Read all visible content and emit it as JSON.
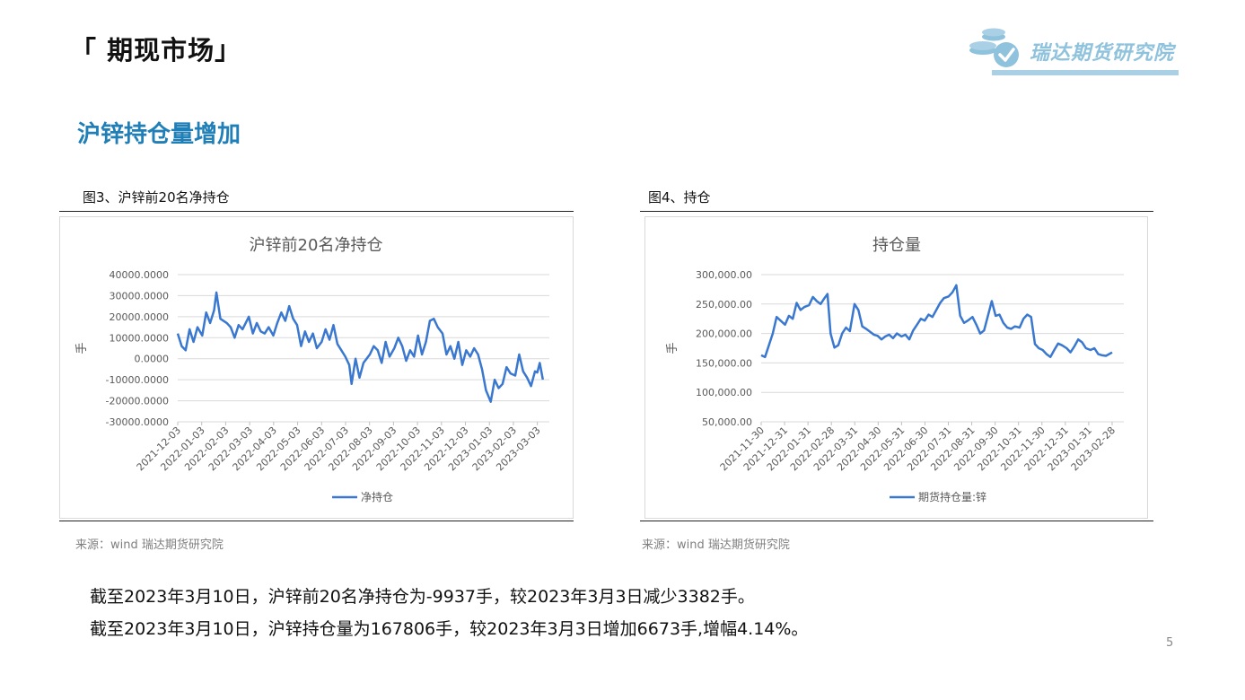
{
  "header": {
    "title": "「 期现市场」"
  },
  "logo": {
    "text": "瑞达期货研究院",
    "color": "#8fc2dc"
  },
  "section": {
    "heading": "沪锌持仓量增加",
    "color": "#1f7fb6"
  },
  "left_panel": {
    "caption": "图3、沪锌前20名净持仓",
    "source": "来源：wind   瑞达期货研究院"
  },
  "right_panel": {
    "caption": "图4、持仓",
    "source": "来源：wind   瑞达期货研究院"
  },
  "body": {
    "line1": "截至2023年3月10日，沪锌前20名净持仓为-9937手，较2023年3月3日减少3382手。",
    "line2": "截至2023年3月10日，沪锌持仓量为167806手，较2023年3月3日增加6673手,增幅4.14%。"
  },
  "page_number": "5",
  "chart_data": [
    {
      "type": "line",
      "title": "沪锌前20名净持仓",
      "ylabel": "手",
      "xlabel": "",
      "legend_position": "bottom",
      "grid": true,
      "color": "#3a78d0",
      "ylim": [
        -30000,
        40000
      ],
      "y_ticks": [
        "40000.0000",
        "30000.0000",
        "20000.0000",
        "10000.0000",
        "0.0000",
        "-10000.0000",
        "-20000.0000",
        "-30000.0000"
      ],
      "x_ticks": [
        "2021-12-03",
        "2022-01-03",
        "2022-02-03",
        "2022-03-03",
        "2022-04-03",
        "2022-05-03",
        "2022-06-03",
        "2022-07-03",
        "2022-08-03",
        "2022-09-03",
        "2022-10-03",
        "2022-11-03",
        "2022-12-03",
        "2023-01-03",
        "2023-02-03",
        "2023-03-03"
      ],
      "series": [
        {
          "name": "净持仓",
          "points": [
            [
              "2021-12-03",
              12000
            ],
            [
              "2021-12-08",
              6000
            ],
            [
              "2021-12-13",
              4000
            ],
            [
              "2021-12-18",
              14000
            ],
            [
              "2021-12-23",
              8000
            ],
            [
              "2021-12-28",
              15000
            ],
            [
              "2022-01-03",
              11000
            ],
            [
              "2022-01-08",
              22000
            ],
            [
              "2022-01-13",
              17000
            ],
            [
              "2022-01-18",
              23000
            ],
            [
              "2022-01-21",
              31500
            ],
            [
              "2022-01-26",
              19000
            ],
            [
              "2022-02-03",
              17000
            ],
            [
              "2022-02-08",
              15000
            ],
            [
              "2022-02-13",
              10000
            ],
            [
              "2022-02-18",
              16000
            ],
            [
              "2022-02-23",
              14000
            ],
            [
              "2022-03-03",
              20000
            ],
            [
              "2022-03-08",
              12000
            ],
            [
              "2022-03-13",
              17000
            ],
            [
              "2022-03-18",
              13000
            ],
            [
              "2022-03-23",
              12000
            ],
            [
              "2022-03-28",
              15000
            ],
            [
              "2022-04-03",
              11000
            ],
            [
              "2022-04-08",
              17000
            ],
            [
              "2022-04-13",
              22000
            ],
            [
              "2022-04-18",
              18000
            ],
            [
              "2022-04-23",
              25000
            ],
            [
              "2022-04-28",
              19000
            ],
            [
              "2022-05-03",
              16000
            ],
            [
              "2022-05-08",
              6000
            ],
            [
              "2022-05-13",
              13000
            ],
            [
              "2022-05-18",
              8000
            ],
            [
              "2022-05-23",
              12000
            ],
            [
              "2022-05-28",
              5000
            ],
            [
              "2022-06-03",
              8000
            ],
            [
              "2022-06-08",
              14000
            ],
            [
              "2022-06-13",
              9000
            ],
            [
              "2022-06-18",
              16000
            ],
            [
              "2022-06-23",
              7000
            ],
            [
              "2022-06-28",
              4000
            ],
            [
              "2022-07-03",
              1000
            ],
            [
              "2022-07-08",
              -3000
            ],
            [
              "2022-07-11",
              -12000
            ],
            [
              "2022-07-16",
              0
            ],
            [
              "2022-07-21",
              -9000
            ],
            [
              "2022-07-26",
              -2000
            ],
            [
              "2022-08-03",
              2000
            ],
            [
              "2022-08-08",
              6000
            ],
            [
              "2022-08-13",
              4000
            ],
            [
              "2022-08-18",
              -2000
            ],
            [
              "2022-08-23",
              8000
            ],
            [
              "2022-08-28",
              1000
            ],
            [
              "2022-09-03",
              5000
            ],
            [
              "2022-09-08",
              10000
            ],
            [
              "2022-09-13",
              6000
            ],
            [
              "2022-09-18",
              -1000
            ],
            [
              "2022-09-23",
              4000
            ],
            [
              "2022-09-28",
              1000
            ],
            [
              "2022-10-03",
              11000
            ],
            [
              "2022-10-08",
              2000
            ],
            [
              "2022-10-13",
              8000
            ],
            [
              "2022-10-18",
              18000
            ],
            [
              "2022-10-23",
              19000
            ],
            [
              "2022-10-28",
              15000
            ],
            [
              "2022-11-03",
              12000
            ],
            [
              "2022-11-08",
              2000
            ],
            [
              "2022-11-13",
              6000
            ],
            [
              "2022-11-18",
              0
            ],
            [
              "2022-11-23",
              8000
            ],
            [
              "2022-11-28",
              -3000
            ],
            [
              "2022-12-03",
              4000
            ],
            [
              "2022-12-08",
              1000
            ],
            [
              "2022-12-13",
              5000
            ],
            [
              "2022-12-18",
              2000
            ],
            [
              "2022-12-23",
              -5000
            ],
            [
              "2022-12-28",
              -15000
            ],
            [
              "2023-01-03",
              -20500
            ],
            [
              "2023-01-08",
              -10000
            ],
            [
              "2023-01-13",
              -14000
            ],
            [
              "2023-01-18",
              -12000
            ],
            [
              "2023-01-23",
              -4000
            ],
            [
              "2023-01-28",
              -7000
            ],
            [
              "2023-02-03",
              -8000
            ],
            [
              "2023-02-08",
              2000
            ],
            [
              "2023-02-13",
              -6000
            ],
            [
              "2023-02-18",
              -9000
            ],
            [
              "2023-02-23",
              -13000
            ],
            [
              "2023-02-28",
              -6000
            ],
            [
              "2023-03-03",
              -6555
            ],
            [
              "2023-03-06",
              -2000
            ],
            [
              "2023-03-10",
              -9937
            ]
          ]
        }
      ]
    },
    {
      "type": "line",
      "title": "持仓量",
      "ylabel": "手",
      "xlabel": "",
      "legend_position": "bottom",
      "grid": true,
      "color": "#3a78d0",
      "ylim": [
        50000,
        300000
      ],
      "y_ticks": [
        "300,000.00",
        "250,000.00",
        "200,000.00",
        "150,000.00",
        "100,000.00",
        "50,000.00"
      ],
      "x_ticks": [
        "2021-11-30",
        "2021-12-31",
        "2022-01-31",
        "2022-02-28",
        "2022-03-31",
        "2022-04-30",
        "2022-05-31",
        "2022-06-30",
        "2022-07-31",
        "2022-08-31",
        "2022-09-30",
        "2022-10-31",
        "2022-11-30",
        "2022-12-31",
        "2023-01-31",
        "2023-02-28"
      ],
      "series": [
        {
          "name": "期货持仓量:锌",
          "points": [
            [
              "2021-11-30",
              163000
            ],
            [
              "2021-12-05",
              160000
            ],
            [
              "2021-12-10",
              180000
            ],
            [
              "2021-12-15",
              200000
            ],
            [
              "2021-12-20",
              228000
            ],
            [
              "2021-12-25",
              222000
            ],
            [
              "2021-12-31",
              215000
            ],
            [
              "2022-01-05",
              230000
            ],
            [
              "2022-01-10",
              225000
            ],
            [
              "2022-01-15",
              252000
            ],
            [
              "2022-01-20",
              240000
            ],
            [
              "2022-01-25",
              245000
            ],
            [
              "2022-01-31",
              248000
            ],
            [
              "2022-02-05",
              262000
            ],
            [
              "2022-02-10",
              255000
            ],
            [
              "2022-02-15",
              250000
            ],
            [
              "2022-02-20",
              260000
            ],
            [
              "2022-02-24",
              267000
            ],
            [
              "2022-02-28",
              200000
            ],
            [
              "2022-03-05",
              176000
            ],
            [
              "2022-03-10",
              180000
            ],
            [
              "2022-03-15",
              200000
            ],
            [
              "2022-03-20",
              210000
            ],
            [
              "2022-03-25",
              204000
            ],
            [
              "2022-03-31",
              250000
            ],
            [
              "2022-04-05",
              240000
            ],
            [
              "2022-04-10",
              212000
            ],
            [
              "2022-04-15",
              208000
            ],
            [
              "2022-04-20",
              203000
            ],
            [
              "2022-04-25",
              198000
            ],
            [
              "2022-04-30",
              196000
            ],
            [
              "2022-05-05",
              190000
            ],
            [
              "2022-05-10",
              195000
            ],
            [
              "2022-05-15",
              198000
            ],
            [
              "2022-05-20",
              192000
            ],
            [
              "2022-05-25",
              200000
            ],
            [
              "2022-05-31",
              195000
            ],
            [
              "2022-06-05",
              198000
            ],
            [
              "2022-06-10",
              190000
            ],
            [
              "2022-06-15",
              205000
            ],
            [
              "2022-06-20",
              215000
            ],
            [
              "2022-06-25",
              225000
            ],
            [
              "2022-06-30",
              222000
            ],
            [
              "2022-07-05",
              232000
            ],
            [
              "2022-07-10",
              228000
            ],
            [
              "2022-07-15",
              240000
            ],
            [
              "2022-07-20",
              252000
            ],
            [
              "2022-07-25",
              260000
            ],
            [
              "2022-07-31",
              263000
            ],
            [
              "2022-08-05",
              270000
            ],
            [
              "2022-08-10",
              282000
            ],
            [
              "2022-08-15",
              230000
            ],
            [
              "2022-08-20",
              218000
            ],
            [
              "2022-08-25",
              222000
            ],
            [
              "2022-08-31",
              228000
            ],
            [
              "2022-09-05",
              215000
            ],
            [
              "2022-09-10",
              200000
            ],
            [
              "2022-09-15",
              205000
            ],
            [
              "2022-09-20",
              230000
            ],
            [
              "2022-09-25",
              255000
            ],
            [
              "2022-09-30",
              230000
            ],
            [
              "2022-10-05",
              232000
            ],
            [
              "2022-10-10",
              218000
            ],
            [
              "2022-10-15",
              210000
            ],
            [
              "2022-10-20",
              208000
            ],
            [
              "2022-10-25",
              212000
            ],
            [
              "2022-10-31",
              210000
            ],
            [
              "2022-11-05",
              225000
            ],
            [
              "2022-11-10",
              232000
            ],
            [
              "2022-11-15",
              228000
            ],
            [
              "2022-11-20",
              182000
            ],
            [
              "2022-11-25",
              175000
            ],
            [
              "2022-11-30",
              172000
            ],
            [
              "2022-12-05",
              165000
            ],
            [
              "2022-12-10",
              160000
            ],
            [
              "2022-12-15",
              172000
            ],
            [
              "2022-12-20",
              183000
            ],
            [
              "2022-12-25",
              180000
            ],
            [
              "2022-12-31",
              175000
            ],
            [
              "2023-01-05",
              168000
            ],
            [
              "2023-01-10",
              178000
            ],
            [
              "2023-01-15",
              190000
            ],
            [
              "2023-01-20",
              185000
            ],
            [
              "2023-01-25",
              175000
            ],
            [
              "2023-01-31",
              172000
            ],
            [
              "2023-02-05",
              175000
            ],
            [
              "2023-02-10",
              165000
            ],
            [
              "2023-02-15",
              163000
            ],
            [
              "2023-02-20",
              162000
            ],
            [
              "2023-02-28",
              167806
            ]
          ]
        }
      ]
    }
  ]
}
